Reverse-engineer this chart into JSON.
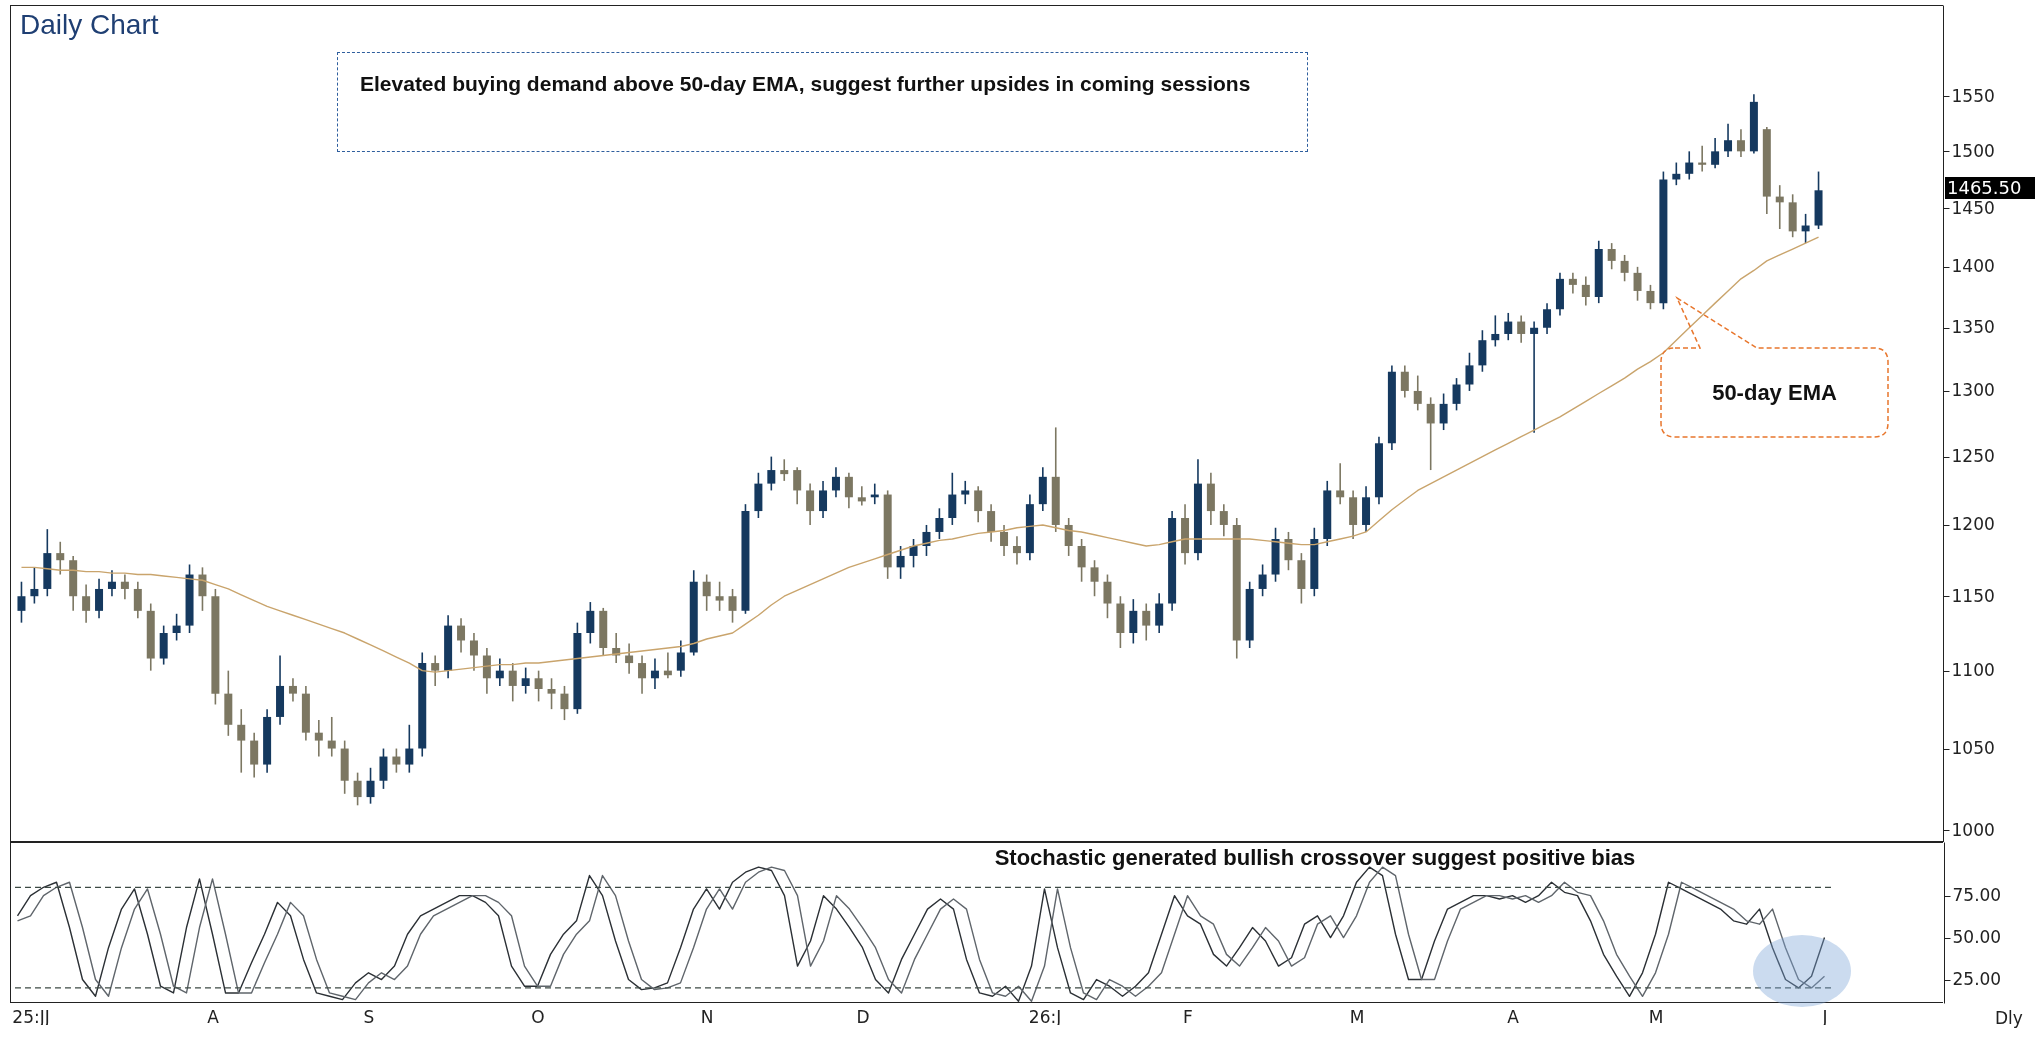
{
  "chart_data": [
    {
      "type": "candlestick",
      "title": "Daily Chart",
      "log": "y",
      "tick_labels": "y",
      "categories": [
        null,
        null,
        null,
        null,
        null,
        null,
        null,
        null,
        null,
        null,
        null,
        null,
        null,
        null,
        null,
        null,
        null,
        null,
        null,
        null,
        null,
        null,
        null,
        null,
        null,
        null,
        null,
        null,
        null,
        null,
        null,
        null,
        null,
        null,
        null,
        null,
        null,
        null,
        null,
        null,
        null,
        null,
        null,
        null,
        null,
        null,
        null,
        null,
        null,
        null,
        null,
        null,
        null,
        null,
        null,
        null,
        null,
        null,
        null,
        null,
        null,
        null,
        null,
        null,
        null,
        null,
        null,
        null,
        null,
        null,
        null,
        null,
        null,
        null,
        null,
        null,
        null,
        null,
        null,
        null,
        null,
        null,
        null,
        null,
        null,
        null,
        null,
        null,
        null,
        null,
        null,
        null,
        null,
        null,
        null,
        null,
        null,
        null,
        null,
        null,
        null,
        null,
        null,
        null,
        null,
        null,
        null,
        null,
        null,
        null,
        null,
        null,
        null,
        null,
        null,
        null,
        null,
        null,
        null,
        null,
        null,
        null,
        null,
        null,
        null,
        null,
        null,
        null,
        null,
        null,
        null,
        null,
        null,
        null,
        null,
        null,
        null,
        null,
        null,
        null
      ],
      "ohlc": [
        [
          1140,
          1160,
          1132,
          1150
        ],
        [
          1150,
          1170,
          1145,
          1155
        ],
        [
          1155,
          1197,
          1150,
          1180
        ],
        [
          1180,
          1188,
          1165,
          1175
        ],
        [
          1175,
          1178,
          1140,
          1150
        ],
        [
          1150,
          1158,
          1132,
          1140
        ],
        [
          1140,
          1162,
          1135,
          1155
        ],
        [
          1155,
          1168,
          1150,
          1160
        ],
        [
          1160,
          1165,
          1148,
          1155
        ],
        [
          1155,
          1160,
          1135,
          1140
        ],
        [
          1140,
          1145,
          1100,
          1108
        ],
        [
          1108,
          1130,
          1104,
          1125
        ],
        [
          1125,
          1138,
          1120,
          1130
        ],
        [
          1130,
          1172,
          1125,
          1165
        ],
        [
          1165,
          1170,
          1140,
          1150
        ],
        [
          1150,
          1155,
          1078,
          1085
        ],
        [
          1085,
          1100,
          1058,
          1065
        ],
        [
          1065,
          1075,
          1035,
          1055
        ],
        [
          1055,
          1060,
          1032,
          1040
        ],
        [
          1040,
          1075,
          1035,
          1070
        ],
        [
          1070,
          1110,
          1065,
          1090
        ],
        [
          1090,
          1095,
          1080,
          1085
        ],
        [
          1085,
          1090,
          1055,
          1060
        ],
        [
          1060,
          1068,
          1045,
          1055
        ],
        [
          1055,
          1070,
          1045,
          1050
        ],
        [
          1050,
          1055,
          1022,
          1030
        ],
        [
          1030,
          1035,
          1015,
          1020
        ],
        [
          1020,
          1038,
          1016,
          1030
        ],
        [
          1030,
          1050,
          1025,
          1045
        ],
        [
          1045,
          1050,
          1035,
          1040
        ],
        [
          1040,
          1065,
          1035,
          1050
        ],
        [
          1050,
          1112,
          1045,
          1105
        ],
        [
          1105,
          1110,
          1090,
          1100
        ],
        [
          1100,
          1137,
          1095,
          1130
        ],
        [
          1130,
          1135,
          1112,
          1120
        ],
        [
          1120,
          1125,
          1100,
          1110
        ],
        [
          1110,
          1115,
          1085,
          1095
        ],
        [
          1095,
          1108,
          1090,
          1100
        ],
        [
          1100,
          1105,
          1080,
          1090
        ],
        [
          1090,
          1102,
          1085,
          1095
        ],
        [
          1095,
          1100,
          1080,
          1088
        ],
        [
          1088,
          1095,
          1075,
          1085
        ],
        [
          1085,
          1090,
          1068,
          1075
        ],
        [
          1075,
          1132,
          1072,
          1125
        ],
        [
          1125,
          1146,
          1118,
          1140
        ],
        [
          1140,
          1142,
          1110,
          1115
        ],
        [
          1115,
          1125,
          1105,
          1110
        ],
        [
          1110,
          1118,
          1098,
          1105
        ],
        [
          1105,
          1110,
          1085,
          1095
        ],
        [
          1095,
          1108,
          1088,
          1100
        ],
        [
          1100,
          1112,
          1095,
          1097
        ],
        [
          1100,
          1120,
          1096,
          1112
        ],
        [
          1112,
          1168,
          1110,
          1160
        ],
        [
          1160,
          1165,
          1140,
          1150
        ],
        [
          1150,
          1160,
          1140,
          1147
        ],
        [
          1150,
          1155,
          1132,
          1140
        ],
        [
          1140,
          1215,
          1138,
          1210
        ],
        [
          1210,
          1238,
          1205,
          1230
        ],
        [
          1230,
          1250,
          1225,
          1240
        ],
        [
          1240,
          1248,
          1232,
          1237
        ],
        [
          1240,
          1242,
          1215,
          1225
        ],
        [
          1225,
          1230,
          1200,
          1210
        ],
        [
          1210,
          1232,
          1205,
          1225
        ],
        [
          1225,
          1242,
          1220,
          1235
        ],
        [
          1235,
          1238,
          1212,
          1220
        ],
        [
          1220,
          1228,
          1214,
          1217
        ],
        [
          1220,
          1230,
          1215,
          1222
        ],
        [
          1222,
          1225,
          1162,
          1170
        ],
        [
          1170,
          1185,
          1162,
          1178
        ],
        [
          1178,
          1190,
          1170,
          1185
        ],
        [
          1185,
          1200,
          1178,
          1195
        ],
        [
          1195,
          1212,
          1190,
          1205
        ],
        [
          1205,
          1238,
          1200,
          1222
        ],
        [
          1222,
          1232,
          1215,
          1225
        ],
        [
          1225,
          1228,
          1202,
          1210
        ],
        [
          1210,
          1215,
          1188,
          1195
        ],
        [
          1195,
          1200,
          1178,
          1185
        ],
        [
          1185,
          1192,
          1172,
          1180
        ],
        [
          1180,
          1222,
          1175,
          1215
        ],
        [
          1215,
          1242,
          1210,
          1235
        ],
        [
          1235,
          1272,
          1195,
          1200
        ],
        [
          1200,
          1205,
          1178,
          1185
        ],
        [
          1185,
          1190,
          1160,
          1170
        ],
        [
          1170,
          1175,
          1150,
          1160
        ],
        [
          1160,
          1165,
          1135,
          1145
        ],
        [
          1145,
          1150,
          1115,
          1125
        ],
        [
          1125,
          1148,
          1118,
          1140
        ],
        [
          1140,
          1145,
          1120,
          1130
        ],
        [
          1130,
          1152,
          1125,
          1145
        ],
        [
          1145,
          1210,
          1140,
          1205
        ],
        [
          1205,
          1215,
          1172,
          1180
        ],
        [
          1180,
          1248,
          1175,
          1230
        ],
        [
          1230,
          1238,
          1200,
          1210
        ],
        [
          1210,
          1215,
          1192,
          1200
        ],
        [
          1200,
          1205,
          1108,
          1120
        ],
        [
          1120,
          1160,
          1115,
          1155
        ],
        [
          1155,
          1172,
          1150,
          1165
        ],
        [
          1165,
          1198,
          1160,
          1190
        ],
        [
          1190,
          1195,
          1168,
          1175
        ],
        [
          1175,
          1180,
          1145,
          1155
        ],
        [
          1155,
          1198,
          1150,
          1190
        ],
        [
          1190,
          1232,
          1185,
          1225
        ],
        [
          1225,
          1245,
          1215,
          1220
        ],
        [
          1220,
          1225,
          1190,
          1200
        ],
        [
          1200,
          1228,
          1195,
          1220
        ],
        [
          1220,
          1265,
          1215,
          1260
        ],
        [
          1260,
          1320,
          1255,
          1315
        ],
        [
          1315,
          1320,
          1295,
          1300
        ],
        [
          1300,
          1312,
          1285,
          1290
        ],
        [
          1290,
          1295,
          1240,
          1275
        ],
        [
          1275,
          1298,
          1270,
          1290
        ],
        [
          1290,
          1310,
          1285,
          1305
        ],
        [
          1305,
          1330,
          1300,
          1320
        ],
        [
          1320,
          1348,
          1315,
          1340
        ],
        [
          1340,
          1360,
          1335,
          1345
        ],
        [
          1345,
          1362,
          1340,
          1355
        ],
        [
          1355,
          1360,
          1338,
          1345
        ],
        [
          1345,
          1355,
          1268,
          1350
        ],
        [
          1350,
          1370,
          1345,
          1365
        ],
        [
          1365,
          1395,
          1360,
          1390
        ],
        [
          1390,
          1395,
          1378,
          1385
        ],
        [
          1385,
          1392,
          1368,
          1375
        ],
        [
          1375,
          1422,
          1370,
          1415
        ],
        [
          1415,
          1420,
          1398,
          1405
        ],
        [
          1405,
          1410,
          1388,
          1395
        ],
        [
          1395,
          1400,
          1372,
          1380
        ],
        [
          1380,
          1385,
          1365,
          1370
        ],
        [
          1370,
          1482,
          1365,
          1475
        ],
        [
          1475,
          1490,
          1470,
          1480
        ],
        [
          1480,
          1500,
          1475,
          1490
        ],
        [
          1490,
          1505,
          1482,
          1488
        ],
        [
          1488,
          1512,
          1485,
          1500
        ],
        [
          1500,
          1525,
          1495,
          1510
        ],
        [
          1510,
          1520,
          1495,
          1500
        ],
        [
          1500,
          1552,
          1498,
          1545
        ],
        [
          1520,
          1522,
          1445,
          1460
        ],
        [
          1460,
          1470,
          1432,
          1455
        ],
        [
          1455,
          1462,
          1425,
          1430
        ],
        [
          1430,
          1445,
          1420,
          1435
        ],
        [
          1435,
          1482,
          1432,
          1465.5
        ]
      ],
      "colors": [
        "#15395f",
        "#15395f",
        "#15395f",
        "#7c7762",
        "#7c7762",
        "#7c7762",
        "#15395f",
        "#15395f",
        "#7c7762",
        "#7c7762",
        "#7c7762",
        "#15395f",
        "#15395f",
        "#15395f",
        "#7c7762",
        "#7c7762",
        "#7c7762",
        "#7c7762",
        "#7c7762",
        "#15395f",
        "#15395f",
        "#7c7762",
        "#7c7762",
        "#7c7762",
        "#7c7762",
        "#7c7762",
        "#7c7762",
        "#15395f",
        "#15395f",
        "#7c7762",
        "#15395f",
        "#15395f",
        "#7c7762",
        "#15395f",
        "#7c7762",
        "#7c7762",
        "#7c7762",
        "#15395f",
        "#7c7762",
        "#15395f",
        "#7c7762",
        "#7c7762",
        "#7c7762",
        "#15395f",
        "#15395f",
        "#7c7762",
        "#7c7762",
        "#7c7762",
        "#7c7762",
        "#15395f",
        "#7c7762",
        "#15395f",
        "#15395f",
        "#7c7762",
        "#7c7762",
        "#7c7762",
        "#15395f",
        "#15395f",
        "#15395f",
        "#7c7762",
        "#7c7762",
        "#7c7762",
        "#15395f",
        "#15395f",
        "#7c7762",
        "#7c7762",
        "#15395f",
        "#7c7762",
        "#15395f",
        "#15395f",
        "#15395f",
        "#15395f",
        "#15395f",
        "#15395f",
        "#7c7762",
        "#7c7762",
        "#7c7762",
        "#7c7762",
        "#15395f",
        "#15395f",
        "#7c7762",
        "#7c7762",
        "#7c7762",
        "#7c7762",
        "#7c7762",
        "#7c7762",
        "#15395f",
        "#7c7762",
        "#15395f",
        "#15395f",
        "#7c7762",
        "#15395f",
        "#7c7762",
        "#7c7762",
        "#7c7762",
        "#15395f",
        "#15395f",
        "#15395f",
        "#7c7762",
        "#7c7762",
        "#15395f",
        "#15395f",
        "#7c7762",
        "#7c7762",
        "#15395f",
        "#15395f",
        "#15395f",
        "#7c7762",
        "#7c7762",
        "#7c7762",
        "#15395f",
        "#15395f",
        "#15395f",
        "#15395f",
        "#15395f",
        "#15395f",
        "#7c7762",
        "#15395f",
        "#15395f",
        "#15395f",
        "#7c7762",
        "#7c7762",
        "#15395f",
        "#7c7762",
        "#7c7762",
        "#7c7762",
        "#7c7762",
        "#15395f",
        "#15395f",
        "#15395f",
        "#7c7762",
        "#15395f",
        "#15395f",
        "#7c7762",
        "#15395f",
        "#7c7762",
        "#7c7762",
        "#7c7762",
        "#15395f",
        "#15395f"
      ],
      "series": [
        {
          "type": "line",
          "color": "#c9a46c",
          "values": [
            1170,
            1170,
            1169,
            1168,
            1168,
            1167,
            1167,
            1166,
            1166,
            1165,
            1165,
            1164,
            1163,
            1162,
            1161,
            1158,
            1155,
            1151,
            1147,
            1143,
            1140,
            1137,
            1134,
            1131,
            1128,
            1125,
            1121,
            1117,
            1113,
            1109,
            1105,
            1100,
            1099,
            1100,
            1101,
            1102,
            1103,
            1104,
            1104,
            1105,
            1105,
            1106,
            1107,
            1108,
            1109,
            1110,
            1111,
            1112,
            1113,
            1114,
            1115,
            1116,
            1118,
            1121,
            1123,
            1125,
            1131,
            1137,
            1144,
            1150,
            1154,
            1158,
            1162,
            1166,
            1170,
            1173,
            1176,
            1179,
            1182,
            1185,
            1187,
            1189,
            1190,
            1192,
            1194,
            1195,
            1196,
            1198,
            1199,
            1200,
            1198,
            1196,
            1195,
            1193,
            1191,
            1189,
            1187,
            1185,
            1186,
            1188,
            1190,
            1190,
            1190,
            1190,
            1190,
            1190,
            1189,
            1188,
            1187,
            1186,
            1186,
            1188,
            1190,
            1192,
            1195,
            1203,
            1211,
            1218,
            1225,
            1230,
            1235,
            1240,
            1245,
            1250,
            1255,
            1260,
            1265,
            1270,
            1275,
            1280,
            1286,
            1292,
            1298,
            1304,
            1310,
            1317,
            1323,
            1330,
            1340,
            1350,
            1360,
            1370,
            1380,
            1390,
            1397,
            1405,
            1410,
            1415,
            1420,
            1425
          ]
        }
      ],
      "ylim": [
        993,
        1637
      ],
      "yticks": [
        1000,
        1050,
        1100,
        1150,
        1200,
        1250,
        1300,
        1350,
        1400,
        1450,
        1500,
        1550
      ],
      "annotations": [
        "Elevated buying demand above 50-day EMA, suggest further upsides in coming sessions",
        "50-day EMA",
        "1465.50"
      ]
    },
    {
      "type": "line",
      "categories": [
        null,
        "25:JJ",
        null,
        null,
        null,
        null,
        null,
        null,
        null,
        null,
        null,
        null,
        null,
        null,
        null,
        "A",
        null,
        null,
        null,
        null,
        null,
        null,
        null,
        null,
        null,
        null,
        null,
        "S",
        null,
        null,
        null,
        null,
        null,
        null,
        null,
        null,
        null,
        null,
        null,
        null,
        "O",
        null,
        null,
        null,
        null,
        null,
        null,
        null,
        null,
        null,
        null,
        null,
        null,
        "N",
        null,
        null,
        null,
        null,
        null,
        null,
        null,
        null,
        null,
        null,
        null,
        "D",
        null,
        null,
        null,
        null,
        null,
        null,
        null,
        null,
        null,
        null,
        null,
        null,
        null,
        "26:J",
        null,
        null,
        null,
        null,
        null,
        null,
        null,
        null,
        null,
        null,
        "F",
        null,
        null,
        null,
        null,
        null,
        null,
        null,
        null,
        null,
        null,
        null,
        null,
        "M",
        null,
        null,
        null,
        null,
        null,
        null,
        null,
        null,
        null,
        null,
        null,
        "A",
        null,
        null,
        null,
        null,
        null,
        null,
        null,
        null,
        null,
        null,
        "M",
        null,
        null,
        null,
        null,
        null,
        null,
        null,
        null,
        null,
        null,
        null,
        null,
        "J"
      ],
      "series": [
        {
          "color": "#2b3035",
          "values": [
            63,
            75,
            80,
            83,
            56,
            25,
            15,
            44,
            67,
            79,
            52,
            21,
            17,
            56,
            85,
            52,
            17,
            17,
            35,
            52,
            71,
            63,
            37,
            17,
            15,
            13,
            23,
            29,
            25,
            33,
            52,
            63,
            67,
            71,
            75,
            75,
            71,
            63,
            33,
            21,
            21,
            40,
            52,
            60,
            87,
            75,
            48,
            25,
            19,
            20,
            23,
            44,
            67,
            79,
            67,
            83,
            89,
            92,
            90,
            75,
            33,
            48,
            75,
            67,
            56,
            44,
            25,
            17,
            37,
            52,
            67,
            73,
            67,
            37,
            17,
            15,
            21,
            12,
            33,
            79,
            44,
            17,
            13,
            25,
            21,
            15,
            21,
            29,
            52,
            75,
            63,
            58,
            40,
            33,
            44,
            56,
            48,
            33,
            38,
            58,
            63,
            50,
            63,
            83,
            92,
            87,
            52,
            25,
            25,
            48,
            67,
            71,
            75,
            75,
            73,
            75,
            71,
            75,
            83,
            77,
            75,
            60,
            40,
            27,
            15,
            29,
            52,
            83,
            79,
            75,
            71,
            67,
            60,
            58,
            67,
            44,
            25,
            20,
            27,
            50
          ]
        },
        {
          "color": "#5f656b",
          "values": [
            60,
            63,
            75,
            80,
            83,
            56,
            25,
            15,
            44,
            67,
            79,
            52,
            21,
            17,
            56,
            85,
            52,
            17,
            17,
            35,
            52,
            71,
            63,
            37,
            17,
            15,
            13,
            23,
            29,
            25,
            33,
            52,
            63,
            67,
            71,
            75,
            75,
            71,
            63,
            33,
            21,
            21,
            40,
            52,
            60,
            87,
            75,
            48,
            25,
            19,
            20,
            23,
            44,
            67,
            79,
            67,
            83,
            89,
            92,
            90,
            75,
            33,
            48,
            75,
            67,
            56,
            44,
            25,
            17,
            37,
            52,
            67,
            73,
            67,
            37,
            17,
            15,
            21,
            12,
            33,
            79,
            44,
            17,
            13,
            25,
            21,
            15,
            21,
            29,
            52,
            75,
            63,
            58,
            40,
            33,
            44,
            56,
            48,
            33,
            38,
            58,
            63,
            50,
            63,
            83,
            92,
            87,
            52,
            25,
            25,
            48,
            67,
            71,
            75,
            75,
            73,
            75,
            71,
            75,
            83,
            77,
            75,
            60,
            40,
            27,
            15,
            29,
            52,
            83,
            79,
            75,
            71,
            67,
            60,
            58,
            67,
            44,
            25,
            20,
            27
          ]
        }
      ],
      "ylim": [
        11,
        107
      ],
      "yticks": [
        {
          "value": 25,
          "label": "25.00"
        },
        {
          "value": 50,
          "label": "50.00"
        },
        {
          "value": 75,
          "label": "75.00"
        }
      ],
      "ref_lines": [
        {
          "axis": "y",
          "value": 80,
          "color": "#3c4a44",
          "line_style": "dashed"
        },
        {
          "axis": "y",
          "value": 20,
          "color": "#3c4a44",
          "line_style": "dashed"
        }
      ],
      "annotations": [
        "Stochastic generated bullish crossover suggest positive bias",
        "Dly"
      ]
    }
  ]
}
